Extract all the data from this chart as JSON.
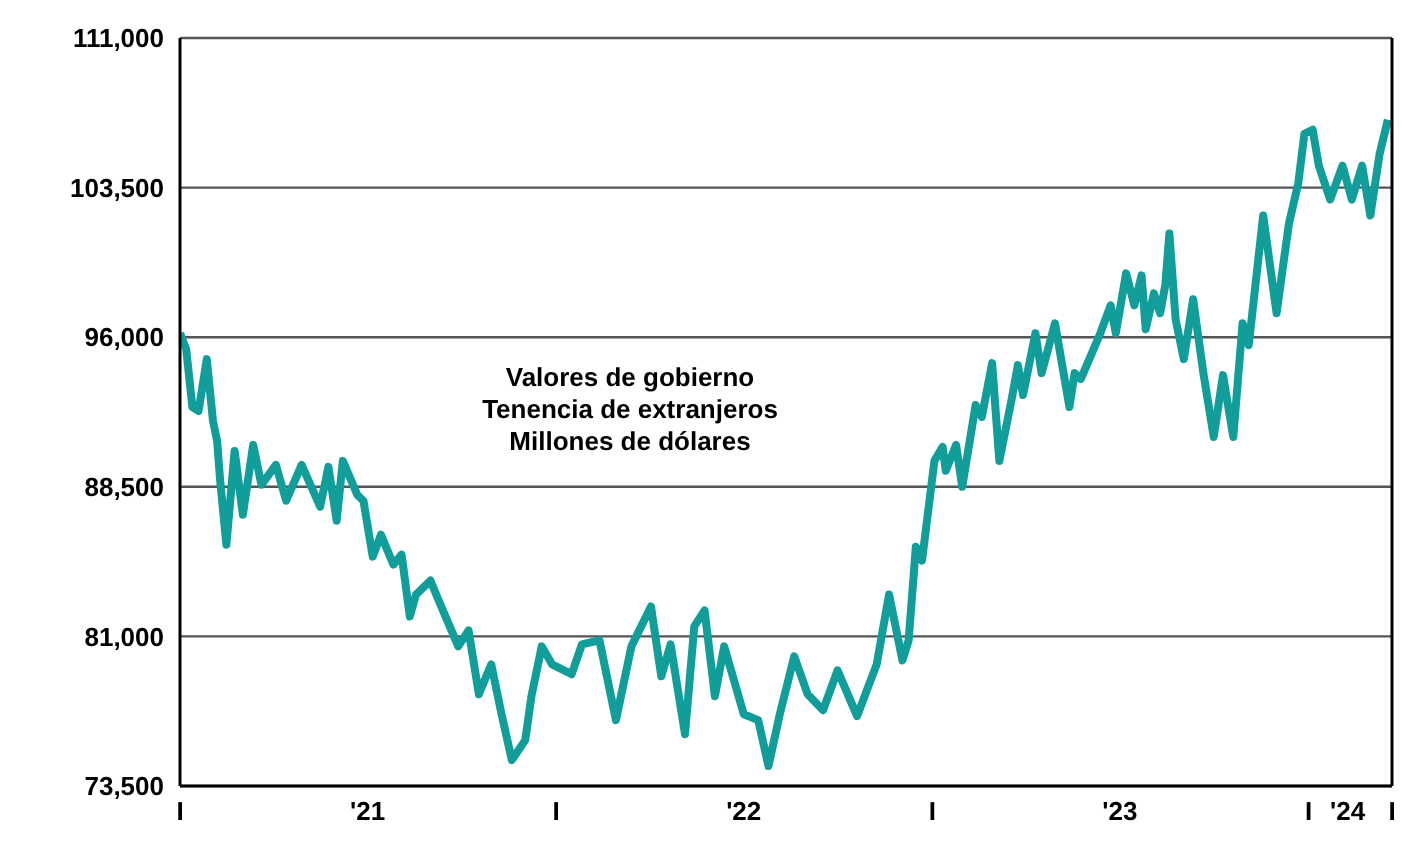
{
  "chart_data": {
    "type": "line",
    "annotations": [
      "Valores de gobierno",
      "Tenencia de extranjeros",
      "Millones de dólares"
    ],
    "x": [
      "2021-01-01",
      "2021-01-07",
      "2021-01-13",
      "2021-01-19",
      "2021-01-27",
      "2021-02-02",
      "2021-02-06",
      "2021-02-09",
      "2021-02-15",
      "2021-02-23",
      "2021-03-03",
      "2021-03-13",
      "2021-03-21",
      "2021-04-04",
      "2021-04-14",
      "2021-04-29",
      "2021-05-17",
      "2021-05-25",
      "2021-06-02",
      "2021-06-08",
      "2021-06-22",
      "2021-06-28",
      "2021-07-07",
      "2021-07-15",
      "2021-07-27",
      "2021-08-04",
      "2021-08-12",
      "2021-08-18",
      "2021-09-01",
      "2021-09-09",
      "2021-09-28",
      "2021-10-08",
      "2021-10-18",
      "2021-10-30",
      "2021-11-09",
      "2021-11-19",
      "2021-12-02",
      "2021-12-08",
      "2021-12-18",
      "2021-12-28",
      "2022-01-16",
      "2022-01-26",
      "2022-02-12",
      "2022-02-28",
      "2022-03-15",
      "2022-04-03",
      "2022-04-13",
      "2022-04-22",
      "2022-05-06",
      "2022-05-15",
      "2022-05-25",
      "2022-06-04",
      "2022-06-13",
      "2022-07-02",
      "2022-07-16",
      "2022-07-26",
      "2022-08-06",
      "2022-08-20",
      "2022-09-02",
      "2022-09-17",
      "2022-10-01",
      "2022-10-20",
      "2022-11-08",
      "2022-11-20",
      "2022-12-03",
      "2022-12-09",
      "2022-12-16",
      "2022-12-22",
      "2023-01-03",
      "2023-01-11",
      "2023-01-14",
      "2023-01-24",
      "2023-01-30",
      "2023-02-12",
      "2023-02-18",
      "2023-02-28",
      "2023-03-07",
      "2023-03-19",
      "2023-03-25",
      "2023-03-30",
      "2023-04-11",
      "2023-04-17",
      "2023-04-30",
      "2023-05-14",
      "2023-05-19",
      "2023-05-25",
      "2023-06-04",
      "2023-06-13",
      "2023-06-23",
      "2023-06-28",
      "2023-07-08",
      "2023-07-16",
      "2023-07-23",
      "2023-07-27",
      "2023-08-04",
      "2023-08-10",
      "2023-08-15",
      "2023-08-19",
      "2023-08-25",
      "2023-09-02",
      "2023-09-11",
      "2023-09-21",
      "2023-10-01",
      "2023-10-10",
      "2023-10-20",
      "2023-10-29",
      "2023-11-04",
      "2023-11-18",
      "2023-12-01",
      "2023-12-13",
      "2023-12-22",
      "2023-12-28",
      "2024-01-05",
      "2024-01-11",
      "2024-01-22",
      "2024-02-03",
      "2024-02-12",
      "2024-02-22",
      "2024-03-01",
      "2024-03-10",
      "2024-03-18"
    ],
    "series": [
      {
        "color": "#119e9a",
        "values": [
          96200,
          95400,
          92500,
          92300,
          94900,
          91800,
          90800,
          88800,
          85600,
          90300,
          87100,
          90600,
          88600,
          89600,
          87800,
          89600,
          87500,
          89500,
          86800,
          89800,
          88100,
          87800,
          85000,
          86100,
          84600,
          85100,
          82000,
          83100,
          83800,
          82800,
          80500,
          81300,
          78100,
          79600,
          77100,
          74800,
          75800,
          78000,
          80500,
          79600,
          79100,
          80600,
          80800,
          76800,
          80500,
          82500,
          79000,
          80600,
          76100,
          81500,
          82300,
          78000,
          80500,
          77100,
          76800,
          74500,
          77100,
          80000,
          78100,
          77300,
          79300,
          77000,
          79600,
          83100,
          79800,
          80800,
          85500,
          84800,
          89800,
          90500,
          89300,
          90600,
          88500,
          92600,
          92000,
          94700,
          89800,
          92900,
          94600,
          93100,
          96200,
          94200,
          96700,
          92500,
          94200,
          93900,
          95100,
          96200,
          97600,
          96200,
          99200,
          97600,
          99100,
          96400,
          98200,
          97200,
          98600,
          101200,
          96900,
          94900,
          97900,
          94200,
          91000,
          94100,
          91000,
          96700,
          95600,
          102100,
          97200,
          101700,
          103700,
          106200,
          106400,
          104600,
          102900,
          104600,
          102900,
          104600,
          102100,
          105200,
          106900
        ]
      }
    ],
    "xlim": [
      "2021-01-01",
      "2024-03-22"
    ],
    "xticks": [
      {
        "value": "2021-01-01",
        "label": "I"
      },
      {
        "value": "2021-07-02",
        "label": "'21"
      },
      {
        "value": "2022-01-01",
        "label": "I"
      },
      {
        "value": "2022-07-02",
        "label": "'22"
      },
      {
        "value": "2023-01-01",
        "label": "I"
      },
      {
        "value": "2023-07-02",
        "label": "'23"
      },
      {
        "value": "2024-01-01",
        "label": "I"
      },
      {
        "value": "2024-02-08",
        "label": "'24"
      },
      {
        "value": "2024-03-22",
        "label": "I"
      }
    ],
    "ylim": [
      73500,
      111000
    ],
    "yticks": [
      {
        "value": 73500,
        "label": "73,500"
      },
      {
        "value": 81000,
        "label": "81,000"
      },
      {
        "value": 88500,
        "label": "88,500"
      },
      {
        "value": 96000,
        "label": "96,000"
      },
      {
        "value": 103500,
        "label": "103,500"
      },
      {
        "value": 111000,
        "label": "111,000"
      }
    ],
    "grid": "y",
    "legend": false,
    "marker": "none",
    "line_style": "solid"
  }
}
